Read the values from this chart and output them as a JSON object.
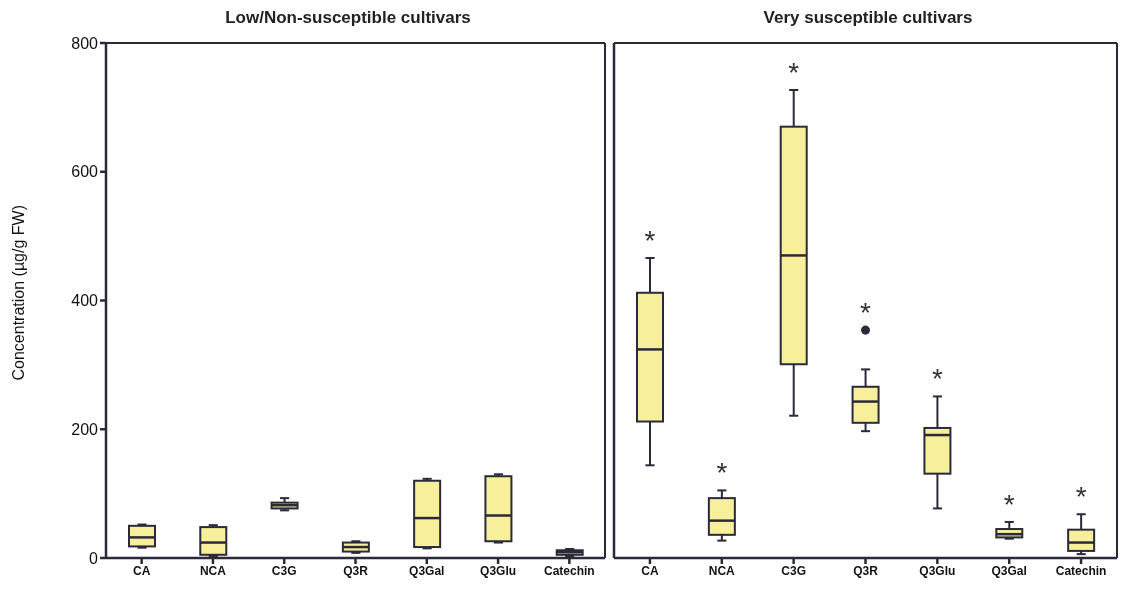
{
  "chart_data": [
    {
      "type": "box",
      "title": "Low/Non-susceptible cultivars",
      "ylabel": "Concentration (µg/g FW)",
      "categories": [
        "CA",
        "NCA",
        "C3G",
        "Q3R",
        "Q3Gal",
        "Q3Glu",
        "Catechin"
      ],
      "ylim": [
        0,
        800
      ],
      "yticks": [
        0,
        200,
        400,
        600,
        800
      ],
      "grid": false,
      "series": [
        {
          "color": "#f7ef9a",
          "boxes": [
            {
              "low": 16,
              "q1": 18,
              "median": 32,
              "q3": 50,
              "high": 52
            },
            {
              "low": 3,
              "q1": 5,
              "median": 24,
              "q3": 48,
              "high": 51
            },
            {
              "low": 74,
              "q1": 77,
              "median": 82,
              "q3": 86,
              "high": 93
            },
            {
              "low": 8,
              "q1": 10,
              "median": 17,
              "q3": 24,
              "high": 26
            },
            {
              "low": 15,
              "q1": 17,
              "median": 62,
              "q3": 120,
              "high": 123
            },
            {
              "low": 24,
              "q1": 26,
              "median": 66,
              "q3": 127,
              "high": 130
            },
            {
              "low": 3,
              "q1": 5,
              "median": 9,
              "q3": 12,
              "high": 14
            }
          ]
        }
      ]
    },
    {
      "type": "box",
      "title": "Very susceptible cultivars",
      "categories": [
        "CA",
        "NCA",
        "C3G",
        "Q3R",
        "Q3Glu",
        "Q3Gal",
        "Catechin"
      ],
      "ylim": [
        0,
        800
      ],
      "yticks": [
        0,
        200,
        400,
        600,
        800
      ],
      "tick_labels": "x",
      "grid": false,
      "series": [
        {
          "color": "#f7ef9a",
          "boxes": [
            {
              "low": 144,
              "q1": 212,
              "median": 324,
              "q3": 412,
              "high": 466
            },
            {
              "low": 27,
              "q1": 36,
              "median": 58,
              "q3": 93,
              "high": 105
            },
            {
              "low": 221,
              "q1": 301,
              "median": 470,
              "q3": 670,
              "high": 727
            },
            {
              "low": 197,
              "q1": 210,
              "median": 243,
              "q3": 266,
              "high": 293,
              "outliers": [
                354
              ]
            },
            {
              "low": 77,
              "q1": 131,
              "median": 191,
              "q3": 202,
              "high": 251
            },
            {
              "low": 30,
              "q1": 32,
              "median": 37,
              "q3": 45,
              "high": 56
            },
            {
              "low": 6,
              "q1": 11,
              "median": 24,
              "q3": 44,
              "high": 68
            }
          ]
        }
      ],
      "annotations": [
        "*",
        "*",
        "*",
        "*",
        "*",
        "*",
        "*"
      ]
    }
  ]
}
